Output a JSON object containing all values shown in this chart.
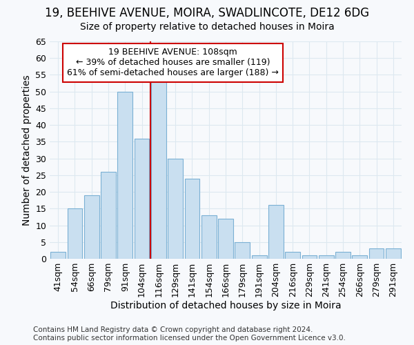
{
  "title1": "19, BEEHIVE AVENUE, MOIRA, SWADLINCOTE, DE12 6DG",
  "title2": "Size of property relative to detached houses in Moira",
  "xlabel": "Distribution of detached houses by size in Moira",
  "ylabel": "Number of detached properties",
  "categories": [
    "41sqm",
    "54sqm",
    "66sqm",
    "79sqm",
    "91sqm",
    "104sqm",
    "116sqm",
    "129sqm",
    "141sqm",
    "154sqm",
    "166sqm",
    "179sqm",
    "191sqm",
    "204sqm",
    "216sqm",
    "229sqm",
    "241sqm",
    "254sqm",
    "266sqm",
    "279sqm",
    "291sqm"
  ],
  "values": [
    2,
    15,
    19,
    26,
    50,
    36,
    53,
    30,
    24,
    13,
    12,
    5,
    1,
    16,
    2,
    1,
    1,
    2,
    1,
    3,
    3
  ],
  "bar_color": "#c9dff0",
  "bar_edge_color": "#7ab0d4",
  "property_label": "19 BEEHIVE AVENUE: 108sqm",
  "annotation_line1": "← 39% of detached houses are smaller (119)",
  "annotation_line2": "61% of semi-detached houses are larger (188) →",
  "vline_position": 5.5,
  "annotation_box_color": "#ffffff",
  "annotation_box_edge_color": "#cc0000",
  "vline_color": "#cc0000",
  "ylim": [
    0,
    65
  ],
  "yticks": [
    0,
    5,
    10,
    15,
    20,
    25,
    30,
    35,
    40,
    45,
    50,
    55,
    60,
    65
  ],
  "footer1": "Contains HM Land Registry data © Crown copyright and database right 2024.",
  "footer2": "Contains public sector information licensed under the Open Government Licence v3.0.",
  "bg_color": "#f7f9fc",
  "grid_color": "#dde8f0",
  "title1_fontsize": 12,
  "title2_fontsize": 10,
  "axis_label_fontsize": 10,
  "tick_fontsize": 9,
  "annotation_fontsize": 9,
  "footer_fontsize": 7.5
}
